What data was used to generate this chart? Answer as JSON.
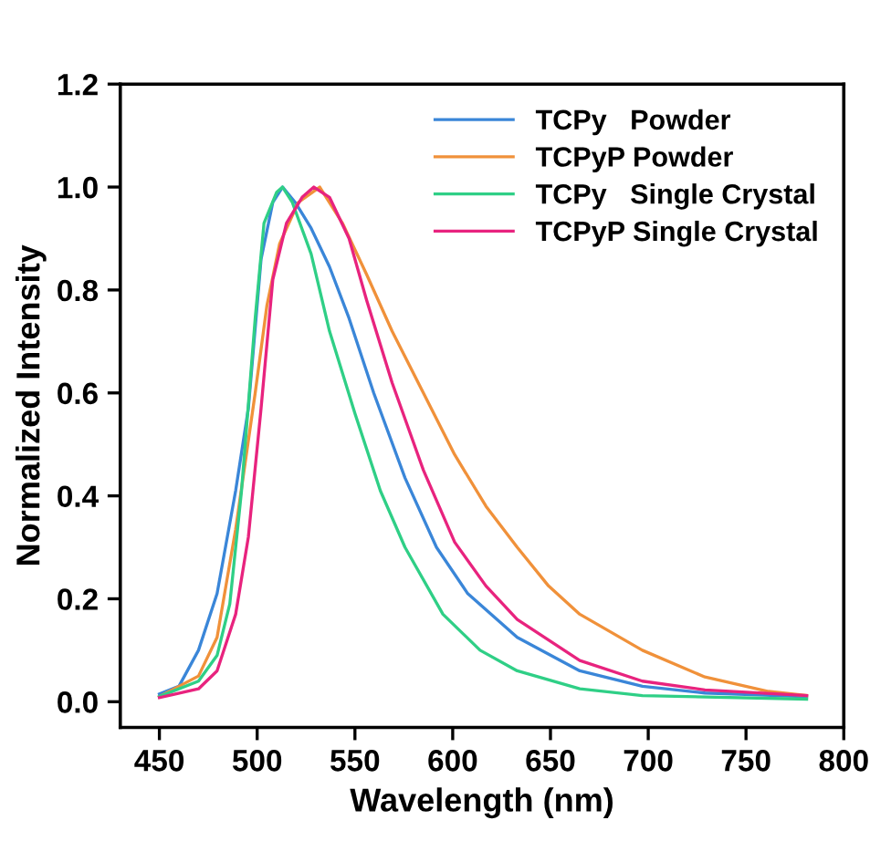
{
  "chart_data": {
    "type": "line",
    "xlabel": "Wavelength (nm)",
    "ylabel": "Normalized Intensity",
    "xlim": [
      430,
      800
    ],
    "ylim": [
      -0.05,
      1.2
    ],
    "xticks": [
      450,
      500,
      550,
      600,
      650,
      700,
      750,
      800
    ],
    "yticks": [
      {
        "value": 0,
        "label": "0.0"
      },
      {
        "value": 0.2,
        "label": "0.2"
      },
      {
        "value": 0.4,
        "label": "0.4"
      },
      {
        "value": 0.6,
        "label": "0.6"
      },
      {
        "value": 0.8,
        "label": "0.8"
      },
      {
        "value": 1.0,
        "label": "1.0"
      },
      {
        "value": 1.2,
        "label": "1.2"
      }
    ],
    "legend": "top right",
    "grid": false,
    "marker": "none",
    "line_style": "solid",
    "series": [
      {
        "name": "TCPy   Powder",
        "color": "#3a86d8",
        "x": [
          450,
          460,
          470,
          479.5,
          489,
          495.5,
          502,
          508,
          513,
          519.5,
          527.6,
          537,
          547,
          559.6,
          575.6,
          591.7,
          607.7,
          633,
          665,
          697,
          729,
          781
        ],
        "values": [
          0.015,
          0.03,
          0.1,
          0.21,
          0.41,
          0.57,
          0.86,
          0.97,
          1.0,
          0.97,
          0.92,
          0.845,
          0.745,
          0.6,
          0.435,
          0.3,
          0.21,
          0.125,
          0.06,
          0.03,
          0.017,
          0.01
        ]
      },
      {
        "name": "TCPyP Powder",
        "color": "#f0913a",
        "x": [
          450,
          470,
          479.5,
          489,
          499,
          505,
          511.5,
          521,
          532,
          543.6,
          556,
          569,
          585,
          601,
          617,
          633,
          649,
          665,
          697,
          729,
          761.5,
          781
        ],
        "values": [
          0.01,
          0.05,
          0.125,
          0.335,
          0.6,
          0.77,
          0.89,
          0.97,
          1.0,
          0.93,
          0.83,
          0.72,
          0.6,
          0.48,
          0.38,
          0.3,
          0.225,
          0.17,
          0.1,
          0.048,
          0.02,
          0.012
        ]
      },
      {
        "name": "TCPy   Single Crystal",
        "color": "#2fcf86",
        "x": [
          450,
          470,
          479.5,
          486,
          492,
          499,
          503.5,
          510,
          513,
          518,
          527.6,
          537,
          550,
          563,
          575.6,
          595,
          614,
          633,
          665,
          697,
          781
        ],
        "values": [
          0.01,
          0.04,
          0.09,
          0.19,
          0.41,
          0.745,
          0.93,
          0.99,
          1.0,
          0.97,
          0.87,
          0.72,
          0.56,
          0.41,
          0.3,
          0.17,
          0.1,
          0.06,
          0.025,
          0.012,
          0.005
        ]
      },
      {
        "name": "TCPyP Single Crystal",
        "color": "#e8237e",
        "x": [
          450,
          470,
          479.5,
          489,
          495.5,
          502,
          508,
          515,
          523,
          529,
          537,
          547,
          556,
          569,
          585,
          601,
          617,
          633,
          665,
          697,
          729,
          781
        ],
        "values": [
          0.008,
          0.025,
          0.06,
          0.17,
          0.32,
          0.57,
          0.82,
          0.93,
          0.98,
          1.0,
          0.98,
          0.9,
          0.78,
          0.62,
          0.45,
          0.31,
          0.225,
          0.16,
          0.08,
          0.04,
          0.023,
          0.012
        ]
      }
    ]
  }
}
